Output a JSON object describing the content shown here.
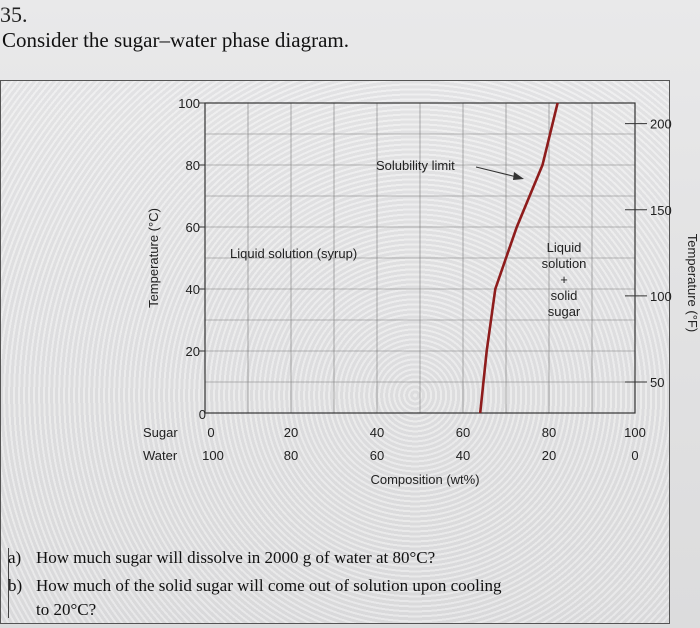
{
  "question": {
    "number": "35.",
    "title": "Consider the sugar–water phase diagram.",
    "parts": [
      {
        "letter": "a)",
        "text": "How much sugar will dissolve in 2000 g of water at 80°C?"
      },
      {
        "letter": "b)",
        "text": "How much of the solid sugar will come out of solution upon cooling"
      },
      {
        "letter": "",
        "text": "to 20°C?"
      }
    ]
  },
  "chart_data": {
    "type": "line",
    "ylabel": "Temperature (°C)",
    "ylabel_right": "Temperature (°F)",
    "xlabel": "Composition (wt%)",
    "x_row1_label": "Sugar",
    "x_row2_label": "Water",
    "x_ticks_sugar": [
      "0",
      "20",
      "40",
      "60",
      "80",
      "100"
    ],
    "x_ticks_water": [
      "100",
      "80",
      "60",
      "40",
      "20",
      "0"
    ],
    "y_ticks": [
      "0",
      "20",
      "40",
      "60",
      "80",
      "100"
    ],
    "y_ticks_right": [
      "50",
      "100",
      "150",
      "200"
    ],
    "xlim": [
      0,
      100
    ],
    "ylim": [
      0,
      100
    ],
    "grid": true,
    "series": [
      {
        "x": [
          64,
          65.5,
          67.5,
          70,
          72.5,
          75.5,
          78.5,
          82
        ],
        "y": [
          0,
          20,
          40,
          50,
          60,
          70,
          80,
          100
        ]
      }
    ],
    "annotations": {
      "solubility_limit": "Solubility limit",
      "liquid_region": "Liquid solution (syrup)",
      "two_phase": [
        "Liquid",
        "solution",
        "+",
        "solid",
        "sugar"
      ]
    },
    "line_color": "#8e1c1c"
  }
}
